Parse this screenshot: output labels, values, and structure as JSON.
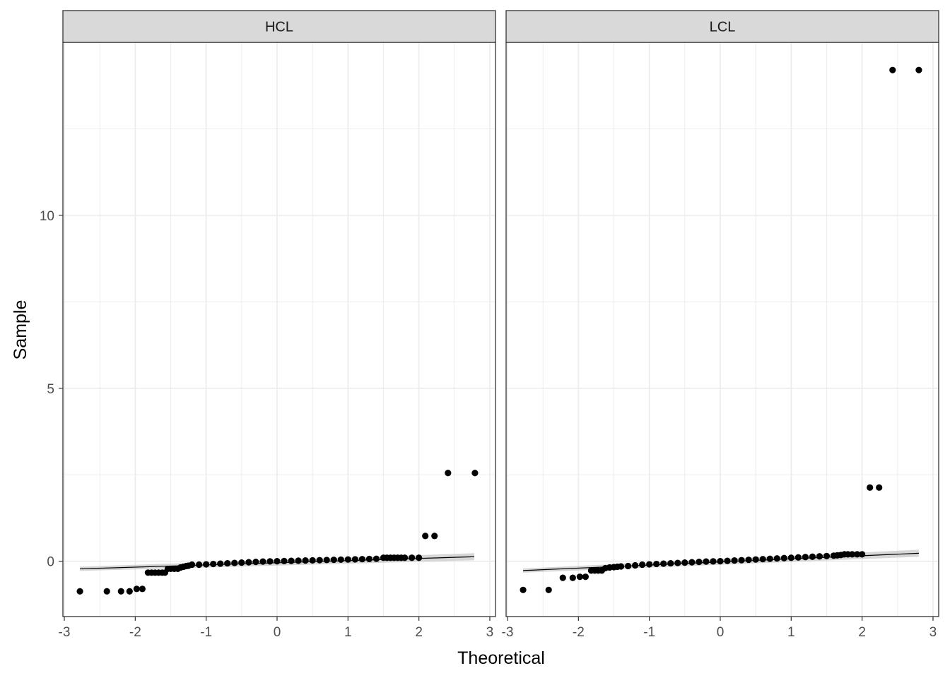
{
  "chart_data": {
    "type": "scatter",
    "subtype": "qq-plot-faceted",
    "xlabel": "Theoretical",
    "ylabel": "Sample",
    "xlim": [
      -3.02,
      3.08
    ],
    "ylim": [
      -1.6,
      15.0
    ],
    "x_ticks": [
      -3,
      -2,
      -1,
      0,
      1,
      2,
      3
    ],
    "x_tick_labels": [
      "-3",
      "-2",
      "-1",
      "0",
      "1",
      "2",
      "3"
    ],
    "y_ticks": [
      0,
      5,
      10
    ],
    "y_tick_labels": [
      "0",
      "5",
      "10"
    ],
    "grid": true,
    "colors": {
      "points": "#000000",
      "line": "#000000",
      "band": "#bdbdbd",
      "strip_fill": "#d9d9d9",
      "grid": "#ebebeb",
      "panel_border": "#333333"
    },
    "facets": [
      {
        "label": "HCL",
        "reference_line": {
          "x": [
            -2.78,
            2.78
          ],
          "y": [
            -0.22,
            0.13
          ]
        },
        "points": {
          "x": [
            -2.78,
            -2.4,
            -2.2,
            -2.08,
            -1.98,
            -1.9,
            -1.82,
            -1.77,
            -1.72,
            -1.67,
            -1.62,
            -1.58,
            -1.54,
            -1.5,
            -1.45,
            -1.4,
            -1.36,
            -1.32,
            -1.28,
            -1.25,
            -1.2,
            -1.1,
            -1.0,
            -0.9,
            -0.8,
            -0.7,
            -0.6,
            -0.5,
            -0.4,
            -0.3,
            -0.2,
            -0.1,
            0.0,
            0.1,
            0.2,
            0.3,
            0.4,
            0.5,
            0.6,
            0.7,
            0.8,
            0.9,
            1.0,
            1.1,
            1.2,
            1.3,
            1.4,
            1.5,
            1.55,
            1.6,
            1.65,
            1.7,
            1.75,
            1.8,
            1.9,
            2.0,
            2.09,
            2.22,
            2.41,
            2.79
          ],
          "y": [
            -0.87,
            -0.87,
            -0.87,
            -0.87,
            -0.8,
            -0.8,
            -0.33,
            -0.33,
            -0.33,
            -0.33,
            -0.33,
            -0.33,
            -0.22,
            -0.22,
            -0.22,
            -0.22,
            -0.18,
            -0.16,
            -0.14,
            -0.13,
            -0.1,
            -0.1,
            -0.09,
            -0.08,
            -0.07,
            -0.06,
            -0.05,
            -0.04,
            -0.03,
            -0.02,
            -0.01,
            -0.005,
            0.0,
            0.005,
            0.01,
            0.015,
            0.02,
            0.025,
            0.03,
            0.035,
            0.04,
            0.045,
            0.05,
            0.055,
            0.06,
            0.065,
            0.07,
            0.1,
            0.1,
            0.1,
            0.1,
            0.1,
            0.1,
            0.1,
            0.1,
            0.1,
            0.73,
            0.73,
            2.55,
            2.55
          ]
        }
      },
      {
        "label": "LCL",
        "reference_line": {
          "x": [
            -2.78,
            2.8
          ],
          "y": [
            -0.27,
            0.23
          ]
        },
        "points": {
          "x": [
            -2.78,
            -2.42,
            -2.22,
            -2.08,
            -1.98,
            -1.9,
            -1.82,
            -1.77,
            -1.72,
            -1.67,
            -1.62,
            -1.56,
            -1.5,
            -1.45,
            -1.4,
            -1.3,
            -1.2,
            -1.1,
            -1.0,
            -0.9,
            -0.8,
            -0.7,
            -0.6,
            -0.5,
            -0.4,
            -0.3,
            -0.2,
            -0.1,
            0.0,
            0.1,
            0.2,
            0.3,
            0.4,
            0.5,
            0.6,
            0.7,
            0.8,
            0.9,
            1.0,
            1.1,
            1.2,
            1.3,
            1.4,
            1.5,
            1.6,
            1.65,
            1.7,
            1.75,
            1.8,
            1.86,
            1.93,
            2.0,
            2.11,
            2.24,
            2.43,
            2.8
          ],
          "y": [
            -0.83,
            -0.83,
            -0.48,
            -0.48,
            -0.45,
            -0.45,
            -0.27,
            -0.27,
            -0.27,
            -0.27,
            -0.2,
            -0.18,
            -0.17,
            -0.16,
            -0.15,
            -0.14,
            -0.12,
            -0.1,
            -0.09,
            -0.08,
            -0.07,
            -0.06,
            -0.05,
            -0.04,
            -0.03,
            -0.02,
            -0.01,
            -0.005,
            0.0,
            0.01,
            0.02,
            0.03,
            0.04,
            0.05,
            0.06,
            0.07,
            0.08,
            0.09,
            0.1,
            0.11,
            0.12,
            0.13,
            0.14,
            0.15,
            0.16,
            0.17,
            0.18,
            0.2,
            0.2,
            0.2,
            0.2,
            0.2,
            2.13,
            2.13,
            14.2,
            14.2
          ]
        }
      }
    ]
  }
}
